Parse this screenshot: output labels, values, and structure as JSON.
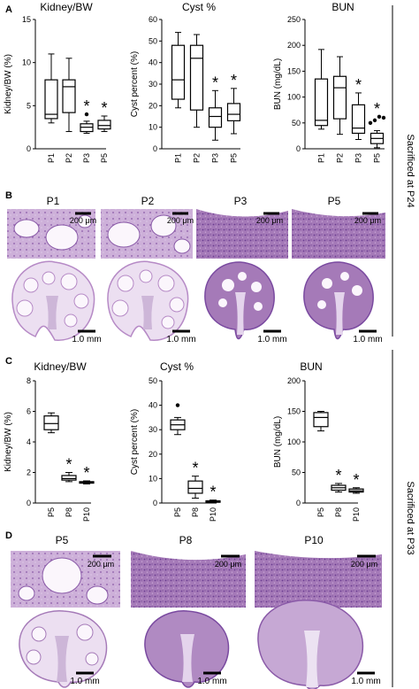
{
  "panels": {
    "A": {
      "letter": "A",
      "side_label": "Sacrificed at P24"
    },
    "B": {
      "letter": "B",
      "histology": {
        "labels": [
          "P1",
          "P2",
          "P3",
          "P5"
        ],
        "scale_top": "200 μm",
        "scale_bottom": "1.0 mm"
      }
    },
    "C": {
      "letter": "C",
      "side_label": "Sacrificed at P33"
    },
    "D": {
      "letter": "D",
      "histology": {
        "labels": [
          "P5",
          "P8",
          "P10"
        ],
        "scale_top": "200 μm",
        "scale_bottom": "1.0 mm"
      }
    }
  },
  "colors": {
    "tissue_light": "#ece0f0",
    "tissue_mid": "#b68ac6",
    "tissue_dark": "#7a4aa0",
    "cyst": "#fbf6fc",
    "medulla": "#cdb6d8"
  },
  "chart_data": [
    {
      "type": "box",
      "panel": "A",
      "title": "Kidney/BW",
      "ylabel": "Kidney/BW (%)",
      "ylim": [
        0,
        15
      ],
      "yticks": [
        0,
        5,
        10,
        15
      ],
      "categories": [
        "P1",
        "P2",
        "P3",
        "P5"
      ],
      "boxes": [
        {
          "min": 3.0,
          "q1": 3.5,
          "median": 4.0,
          "q3": 8.0,
          "max": 11.0,
          "outliers": [],
          "star": false
        },
        {
          "min": 2.0,
          "q1": 4.2,
          "median": 7.2,
          "q3": 8.0,
          "max": 10.5,
          "outliers": [],
          "star": false
        },
        {
          "min": 1.8,
          "q1": 2.0,
          "median": 2.5,
          "q3": 2.9,
          "max": 3.2,
          "outliers": [
            4.0
          ],
          "star": true
        },
        {
          "min": 2.0,
          "q1": 2.3,
          "median": 2.7,
          "q3": 3.3,
          "max": 3.8,
          "outliers": [],
          "star": true
        }
      ]
    },
    {
      "type": "box",
      "panel": "A",
      "title": "Cyst %",
      "ylabel": "Cyst percent (%)",
      "ylim": [
        0,
        60
      ],
      "yticks": [
        0,
        10,
        20,
        30,
        40,
        50,
        60
      ],
      "categories": [
        "P1",
        "P2",
        "P3",
        "P5"
      ],
      "boxes": [
        {
          "min": 19,
          "q1": 23,
          "median": 32,
          "q3": 48,
          "max": 54,
          "outliers": [],
          "star": false
        },
        {
          "min": 10,
          "q1": 18,
          "median": 42,
          "q3": 48,
          "max": 53,
          "outliers": [],
          "star": false
        },
        {
          "min": 4,
          "q1": 10,
          "median": 15,
          "q3": 19,
          "max": 27,
          "outliers": [],
          "star": true
        },
        {
          "min": 7,
          "q1": 13,
          "median": 16,
          "q3": 21,
          "max": 28,
          "outliers": [],
          "star": true
        }
      ]
    },
    {
      "type": "box",
      "panel": "A",
      "title": "BUN",
      "ylabel": "BUN (mg/dL)",
      "ylim": [
        0,
        250
      ],
      "yticks": [
        0,
        50,
        100,
        150,
        200,
        250
      ],
      "categories": [
        "P1",
        "P2",
        "P3",
        "P5"
      ],
      "boxes": [
        {
          "min": 38,
          "q1": 45,
          "median": 55,
          "q3": 135,
          "max": 192,
          "outliers": [],
          "star": false
        },
        {
          "min": 28,
          "q1": 58,
          "median": 118,
          "q3": 140,
          "max": 178,
          "outliers": [],
          "star": false
        },
        {
          "min": 18,
          "q1": 30,
          "median": 40,
          "q3": 85,
          "max": 108,
          "outliers": [],
          "star": true
        },
        {
          "min": 2,
          "q1": 10,
          "median": 20,
          "q3": 30,
          "max": 35,
          "outliers": [
            50,
            55,
            62,
            60
          ],
          "star": true
        }
      ]
    },
    {
      "type": "box",
      "panel": "C",
      "title": "Kidney/BW",
      "ylabel": "Kidney/BW (%)",
      "ylim": [
        0,
        8
      ],
      "yticks": [
        0,
        2,
        4,
        6,
        8
      ],
      "categories": [
        "P5",
        "P8",
        "P10"
      ],
      "boxes": [
        {
          "min": 4.6,
          "q1": 4.8,
          "median": 5.2,
          "q3": 5.7,
          "max": 5.9,
          "outliers": [],
          "star": false
        },
        {
          "min": 1.4,
          "q1": 1.5,
          "median": 1.6,
          "q3": 1.8,
          "max": 2.0,
          "outliers": [],
          "star": true
        },
        {
          "min": 1.25,
          "q1": 1.3,
          "median": 1.35,
          "q3": 1.4,
          "max": 1.45,
          "outliers": [],
          "star": true
        }
      ]
    },
    {
      "type": "box",
      "panel": "C",
      "title": "Cyst %",
      "ylabel": "Cyst percent (%)",
      "ylim": [
        0,
        50
      ],
      "yticks": [
        0,
        10,
        20,
        30,
        40,
        50
      ],
      "categories": [
        "P5",
        "P8",
        "P10"
      ],
      "boxes": [
        {
          "min": 28,
          "q1": 30,
          "median": 32,
          "q3": 34,
          "max": 35,
          "outliers": [
            40
          ],
          "star": false
        },
        {
          "min": 2,
          "q1": 4,
          "median": 6,
          "q3": 9,
          "max": 11,
          "outliers": [],
          "star": true
        },
        {
          "min": 0,
          "q1": 0.3,
          "median": 0.6,
          "q3": 0.9,
          "max": 1.2,
          "outliers": [],
          "star": true
        }
      ]
    },
    {
      "type": "box",
      "panel": "C",
      "title": "BUN",
      "ylabel": "BUN (mg/dL)",
      "ylim": [
        0,
        200
      ],
      "yticks": [
        0,
        50,
        100,
        150,
        200
      ],
      "categories": [
        "P5",
        "P8",
        "P10"
      ],
      "boxes": [
        {
          "min": 118,
          "q1": 125,
          "median": 140,
          "q3": 148,
          "max": 150,
          "outliers": [],
          "star": false
        },
        {
          "min": 18,
          "q1": 21,
          "median": 25,
          "q3": 29,
          "max": 32,
          "outliers": [],
          "star": true
        },
        {
          "min": 16,
          "q1": 18,
          "median": 20,
          "q3": 23,
          "max": 25,
          "outliers": [],
          "star": true
        }
      ]
    }
  ]
}
